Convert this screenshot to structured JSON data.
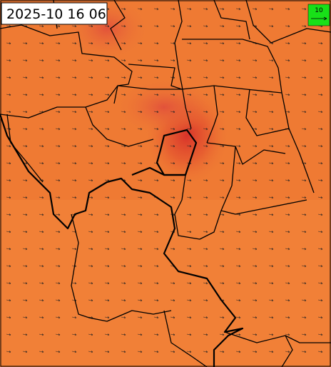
{
  "timestamp": "2025-10 16 06",
  "legend": {
    "label": "10"
  }
}
